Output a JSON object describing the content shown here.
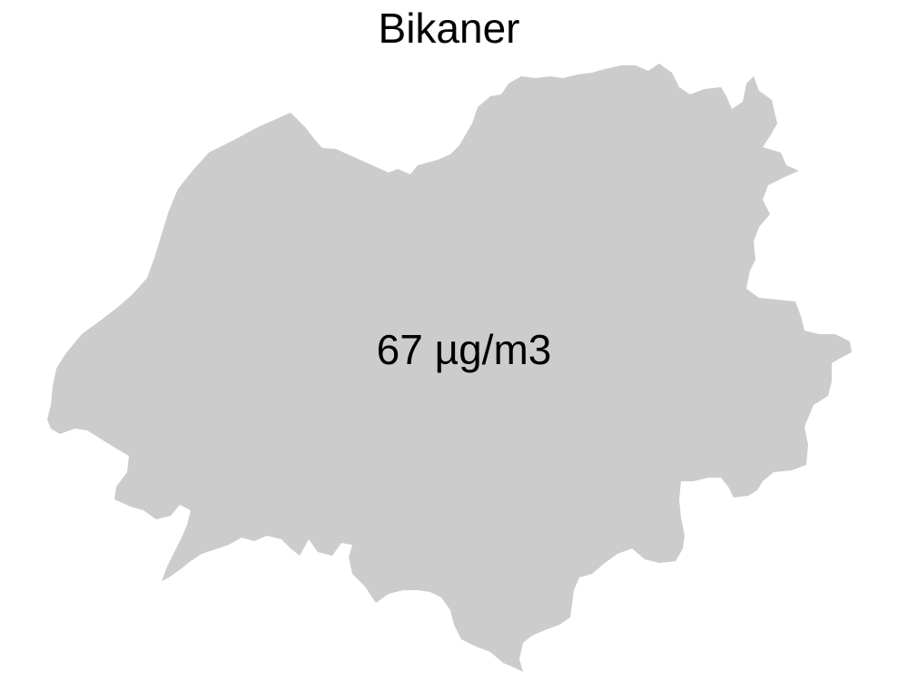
{
  "map": {
    "title": "Bikaner",
    "region": {
      "name": "Bikaner",
      "value_label": "67 µg/m3",
      "fill_color": "#cccccc"
    }
  }
}
